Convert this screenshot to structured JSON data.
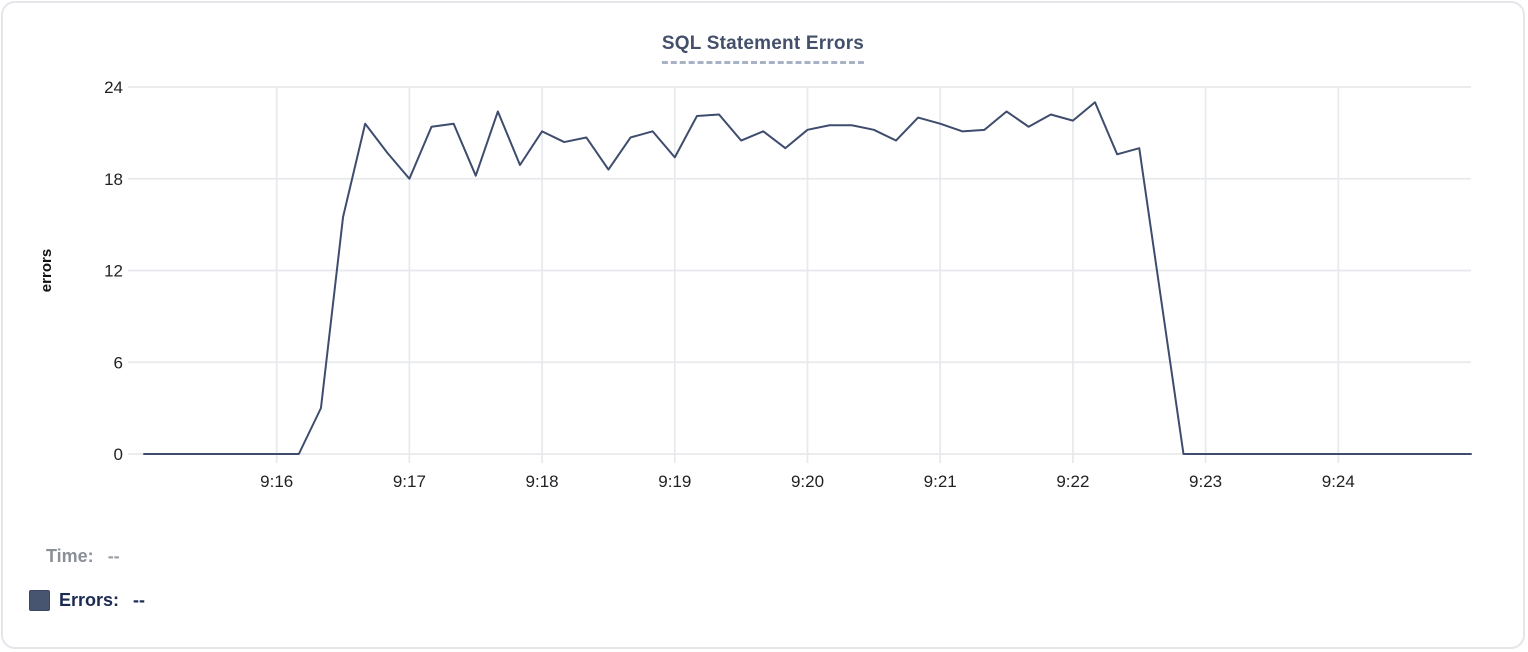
{
  "title": "SQL Statement Errors",
  "footer": {
    "time_label": "Time:",
    "time_value": "--",
    "errors_label": "Errors:",
    "errors_value": "--"
  },
  "colors": {
    "line": "#3e4c6d",
    "swatch": "#475571",
    "grid": "#e8e9ec",
    "tick_text": "#1f2124",
    "axis_label_text": "#111111",
    "title_text": "#44506b"
  },
  "chart_data": {
    "type": "line",
    "title": "SQL Statement Errors",
    "xlabel": "",
    "ylabel": "errors",
    "ylim": [
      0,
      24
    ],
    "y_ticks": [
      0,
      6,
      12,
      18,
      24
    ],
    "x_start_time": "9:15:00",
    "x_end_time": "9:25:00",
    "interval_seconds": 10,
    "x_tick_labels": [
      "9:16",
      "9:17",
      "9:18",
      "9:19",
      "9:20",
      "9:21",
      "9:22",
      "9:23",
      "9:24"
    ],
    "x_tick_minutes": [
      1,
      2,
      3,
      4,
      5,
      6,
      7,
      8,
      9
    ],
    "grid": true,
    "legend_position": "bottom-left",
    "series": [
      {
        "name": "Errors",
        "values": [
          0,
          0,
          0,
          0,
          0,
          0,
          0,
          0,
          3,
          15.5,
          21.6,
          19.7,
          18,
          21.4,
          21.6,
          18.2,
          22.4,
          18.9,
          21.1,
          20.4,
          20.7,
          18.6,
          20.7,
          21.1,
          19.4,
          22.1,
          22.2,
          20.5,
          21.1,
          20,
          21.2,
          21.5,
          21.5,
          21.2,
          20.5,
          22,
          21.6,
          21.1,
          21.2,
          22.4,
          21.4,
          22.2,
          21.8,
          23,
          19.6,
          20,
          10,
          0,
          0,
          0,
          0,
          0,
          0,
          0,
          0,
          0,
          0,
          0,
          0,
          0,
          0
        ]
      }
    ]
  }
}
